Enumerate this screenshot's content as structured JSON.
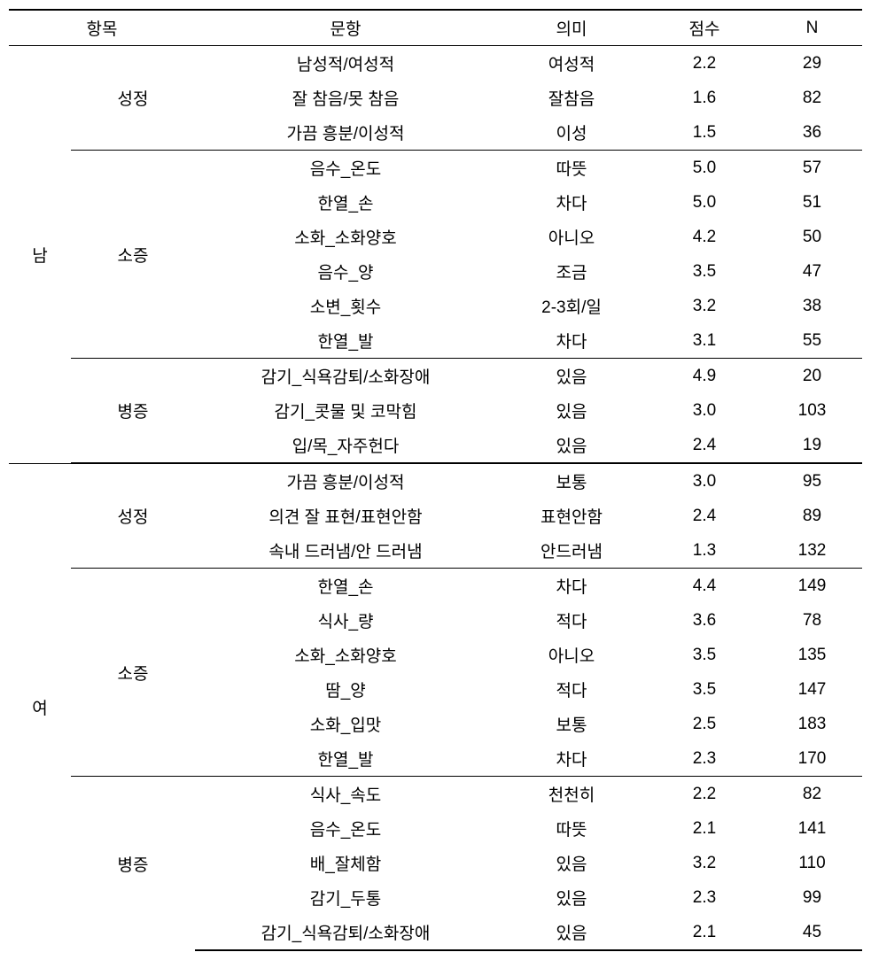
{
  "headers": {
    "category_header": "항목",
    "item": "문항",
    "meaning": "의미",
    "score": "점수",
    "n": "N"
  },
  "groups": [
    {
      "gender": "남",
      "sections": [
        {
          "category": "성정",
          "rows": [
            {
              "item": "남성적/여성적",
              "meaning": "여성적",
              "score": "2.2",
              "n": "29"
            },
            {
              "item": "잘 참음/못 참음",
              "meaning": "잘참음",
              "score": "1.6",
              "n": "82"
            },
            {
              "item": "가끔 흥분/이성적",
              "meaning": "이성",
              "score": "1.5",
              "n": "36"
            }
          ]
        },
        {
          "category": "소증",
          "rows": [
            {
              "item": "음수_온도",
              "meaning": "따뜻",
              "score": "5.0",
              "n": "57"
            },
            {
              "item": "한열_손",
              "meaning": "차다",
              "score": "5.0",
              "n": "51"
            },
            {
              "item": "소화_소화양호",
              "meaning": "아니오",
              "score": "4.2",
              "n": "50"
            },
            {
              "item": "음수_양",
              "meaning": "조금",
              "score": "3.5",
              "n": "47"
            },
            {
              "item": "소변_횟수",
              "meaning": "2-3회/일",
              "score": "3.2",
              "n": "38"
            },
            {
              "item": "한열_발",
              "meaning": "차다",
              "score": "3.1",
              "n": "55"
            }
          ]
        },
        {
          "category": "병증",
          "rows": [
            {
              "item": "감기_식욕감퇴/소화장애",
              "meaning": "있음",
              "score": "4.9",
              "n": "20"
            },
            {
              "item": "감기_콧물 및 코막힘",
              "meaning": "있음",
              "score": "3.0",
              "n": "103"
            },
            {
              "item": "입/목_자주헌다",
              "meaning": "있음",
              "score": "2.4",
              "n": "19"
            }
          ]
        }
      ]
    },
    {
      "gender": "여",
      "sections": [
        {
          "category": "성정",
          "rows": [
            {
              "item": "가끔 흥분/이성적",
              "meaning": "보통",
              "score": "3.0",
              "n": "95"
            },
            {
              "item": "의견 잘 표현/표현안함",
              "meaning": "표현안함",
              "score": "2.4",
              "n": "89"
            },
            {
              "item": "속내 드러냄/안 드러냄",
              "meaning": "안드러냄",
              "score": "1.3",
              "n": "132"
            }
          ]
        },
        {
          "category": "소증",
          "rows": [
            {
              "item": "한열_손",
              "meaning": "차다",
              "score": "4.4",
              "n": "149"
            },
            {
              "item": "식사_량",
              "meaning": "적다",
              "score": "3.6",
              "n": "78"
            },
            {
              "item": "소화_소화양호",
              "meaning": "아니오",
              "score": "3.5",
              "n": "135"
            },
            {
              "item": "땀_양",
              "meaning": "적다",
              "score": "3.5",
              "n": "147"
            },
            {
              "item": "소화_입맛",
              "meaning": "보통",
              "score": "2.5",
              "n": "183"
            },
            {
              "item": "한열_발",
              "meaning": "차다",
              "score": "2.3",
              "n": "170"
            }
          ]
        },
        {
          "category": "병증",
          "rows": [
            {
              "item": "식사_속도",
              "meaning": "천천히",
              "score": "2.2",
              "n": "82"
            },
            {
              "item": "음수_온도",
              "meaning": "따뜻",
              "score": "2.1",
              "n": "141"
            },
            {
              "item": "배_잘체함",
              "meaning": "있음",
              "score": "3.2",
              "n": "110"
            },
            {
              "item": "감기_두통",
              "meaning": "있음",
              "score": "2.3",
              "n": "99"
            },
            {
              "item": "감기_식욕감퇴/소화장애",
              "meaning": "있음",
              "score": "2.1",
              "n": "45"
            }
          ]
        }
      ]
    }
  ]
}
